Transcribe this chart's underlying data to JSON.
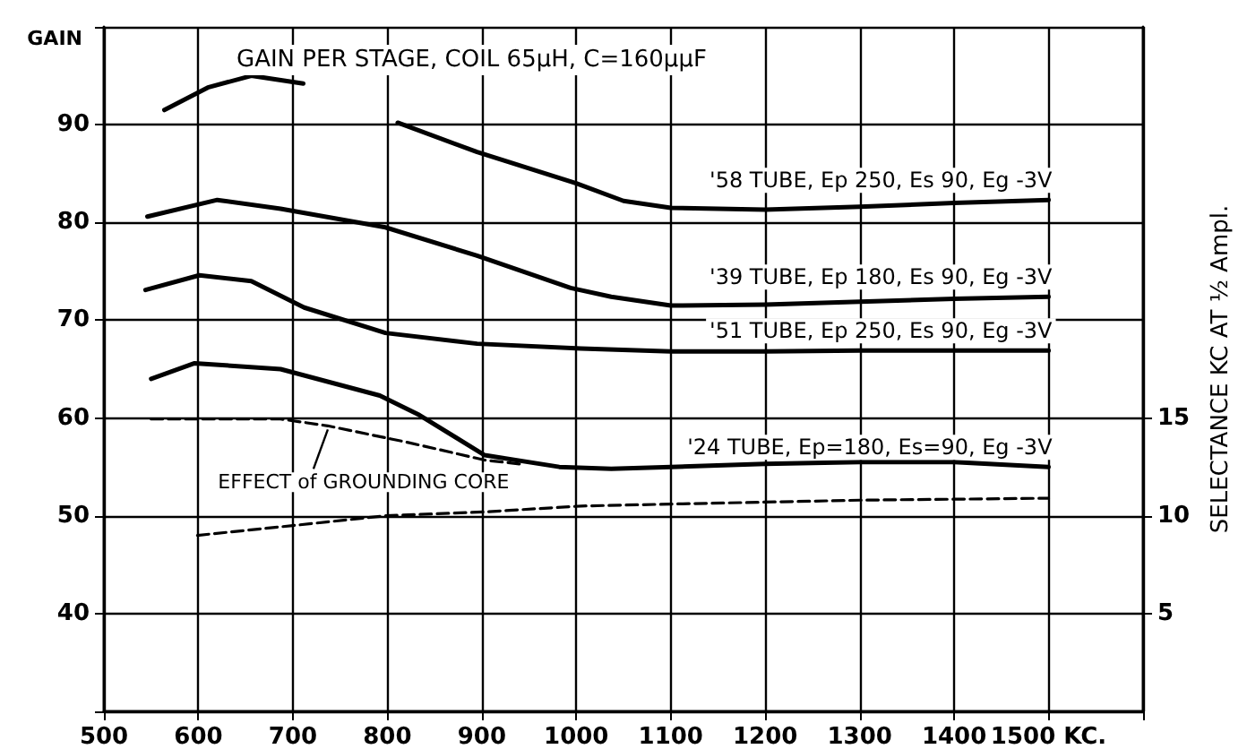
{
  "chart_data": {
    "type": "line",
    "title": "GAIN PER STAGE, COIL 65μH, C=160μμF",
    "ylabel": "GAIN",
    "y2label": "SELECTANCE KC AT ½ Ampl.",
    "xlim": [
      500,
      1600
    ],
    "xticks": [
      500,
      600,
      700,
      800,
      900,
      1000,
      1100,
      1200,
      1300,
      1400,
      {
        "value": 1500,
        "label": "1500 KC."
      },
      {
        "value": 1600,
        "label": null
      }
    ],
    "ylim": [
      30,
      100
    ],
    "yticks": [
      {
        "value": 30,
        "label": null
      },
      40,
      50,
      60,
      70,
      80,
      90,
      {
        "value": 100,
        "label": null
      }
    ],
    "y2lim": [
      0,
      35
    ],
    "y2ticks": [
      5,
      10,
      15
    ],
    "grid": true,
    "marker": "none",
    "series": [
      {
        "name": "'58 TUBE, Ep 250, Es 90, Eg -3V",
        "color": "#000000",
        "line_style": "solid",
        "x": [
          564,
          610,
          656,
          711,
          760,
          811,
          895,
          1000,
          1050,
          1100,
          1200,
          1300,
          1400,
          1500
        ],
        "values": [
          91.5,
          93.8,
          95,
          94.2,
          null,
          90.2,
          87.2,
          84,
          82.2,
          81.5,
          81.3,
          81.6,
          82,
          82.3
        ]
      },
      {
        "name": "'39 TUBE, Ep 180, Es 90, Eg -3V",
        "color": "#000000",
        "line_style": "solid",
        "x": [
          546,
          620,
          687,
          798,
          895,
          994,
          1037,
          1100,
          1200,
          1300,
          1400,
          1500
        ],
        "values": [
          80.6,
          82.3,
          81.4,
          79.5,
          76.6,
          73.3,
          72.4,
          71.5,
          71.6,
          71.9,
          72.2,
          72.4
        ]
      },
      {
        "name": "'51 TUBE, Ep 250, Es 90, Eg -3V",
        "color": "#000000",
        "line_style": "solid",
        "x": [
          544,
          601,
          656,
          712,
          798,
          895,
          1005,
          1100,
          1200,
          1300,
          1400,
          1500
        ],
        "values": [
          73.1,
          74.6,
          74,
          71.3,
          68.7,
          67.6,
          67.1,
          66.8,
          66.8,
          66.9,
          66.9,
          66.9
        ]
      },
      {
        "name": "'24 TUBE, Ep=180, Es=90, Eg -3V",
        "color": "#000000",
        "line_style": "solid",
        "x": [
          550,
          596,
          687,
          792,
          834,
          903,
          982,
          1037,
          1100,
          1200,
          1300,
          1400,
          1500
        ],
        "values": [
          64,
          65.6,
          65,
          62.3,
          60.3,
          56.2,
          55,
          54.8,
          55,
          55.3,
          55.5,
          55.5,
          55
        ]
      },
      {
        "color": "#000000",
        "line_style": "dashed",
        "x": [
          550,
          687,
          737,
          822,
          903,
          940
        ],
        "values": [
          59.9,
          59.9,
          59.2,
          57.5,
          55.7,
          55.3
        ]
      },
      {
        "color": "#000000",
        "line_style": "dashed",
        "axis": "y2",
        "x": [
          599,
          700,
          798,
          903,
          1005,
          1100,
          1300,
          1500
        ],
        "values": [
          9,
          9.5,
          10,
          10.2,
          10.5,
          10.6,
          10.8,
          10.9
        ]
      }
    ],
    "annotations": [
      {
        "text": "EFFECT of GROUNDING CORE",
        "x": 737,
        "y": 59.2
      }
    ]
  }
}
